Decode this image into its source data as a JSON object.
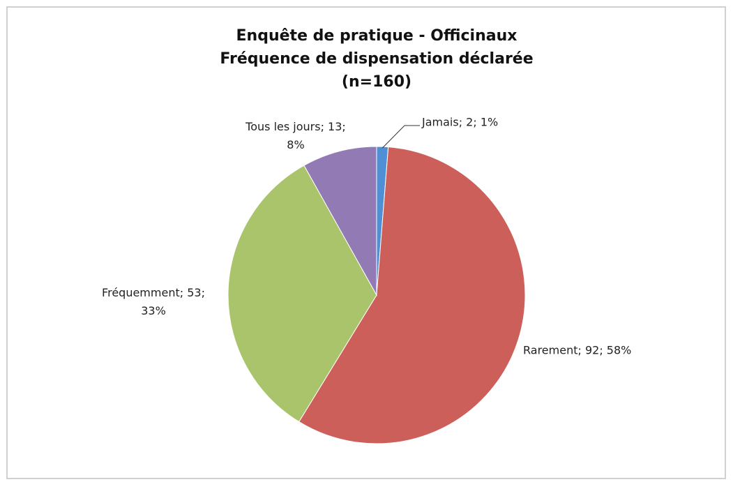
{
  "chart_data": {
    "type": "pie",
    "title": [
      "Enquête de pratique - Officinaux",
      "Fréquence de dispensation déclarée",
      "(n=160)"
    ],
    "categories": [
      "Jamais",
      "Rarement",
      "Fréquemment",
      "Tous les jours"
    ],
    "values": [
      2,
      92,
      53,
      13
    ],
    "value_labels": [
      "Jamais; 2; 1%",
      "Rarement; 92; 58%",
      "Fréquemment; 53; 33%",
      "Tous les jours; 13; 8%"
    ],
    "colors": [
      "#4f8fd6",
      "#cd5f5a",
      "#a9c46a",
      "#927bb4"
    ]
  }
}
